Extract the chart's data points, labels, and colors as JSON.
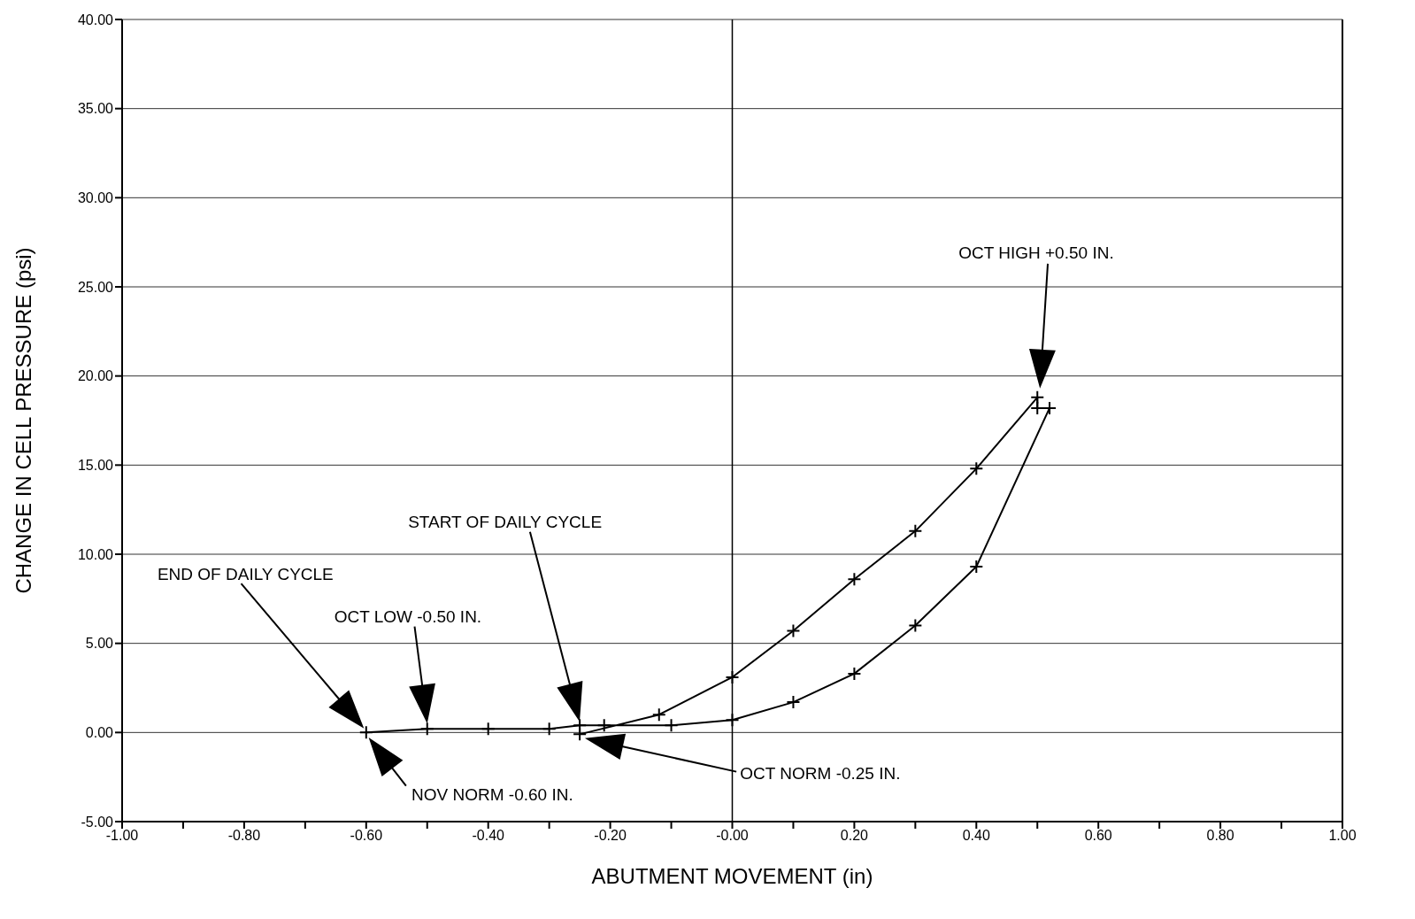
{
  "chart_data": {
    "type": "line",
    "xlabel": "ABUTMENT MOVEMENT (in)",
    "ylabel": "CHANGE IN CELL PRESSURE (psi)",
    "x": [
      -0.25,
      -0.12,
      0.0,
      0.1,
      0.2,
      0.3,
      0.4,
      0.5,
      0.5,
      0.52,
      0.4,
      0.3,
      0.2,
      0.1,
      0.0,
      -0.1,
      -0.21,
      -0.25,
      -0.3,
      -0.4,
      -0.5,
      -0.6
    ],
    "values": [
      -0.1,
      1.0,
      3.1,
      5.7,
      8.6,
      11.3,
      14.8,
      18.8,
      18.2,
      18.2,
      9.3,
      6.0,
      3.3,
      1.7,
      0.7,
      0.4,
      0.4,
      0.4,
      0.2,
      0.2,
      0.2,
      0.0
    ],
    "color": "#000000",
    "marker": "cross",
    "line_style": "solid",
    "grid": "y",
    "xlim": [
      -1,
      1
    ],
    "xticks": [
      {
        "value": -1,
        "label": "-1.00"
      },
      {
        "value": -0.9,
        "label": null
      },
      {
        "value": -0.8,
        "label": "-0.80"
      },
      {
        "value": -0.7,
        "label": null
      },
      {
        "value": -0.6,
        "label": "-0.60"
      },
      {
        "value": -0.5,
        "label": null
      },
      {
        "value": -0.4,
        "label": "-0.40"
      },
      {
        "value": -0.3,
        "label": null
      },
      {
        "value": -0.2,
        "label": "-0.20"
      },
      {
        "value": -0.1,
        "label": null
      },
      {
        "value": 0,
        "label": "-0.00"
      },
      {
        "value": 0.1,
        "label": null
      },
      {
        "value": 0.2,
        "label": "0.20"
      },
      {
        "value": 0.3,
        "label": null
      },
      {
        "value": 0.4,
        "label": "0.40"
      },
      {
        "value": 0.5,
        "label": null
      },
      {
        "value": 0.6,
        "label": "0.60"
      },
      {
        "value": 0.7,
        "label": null
      },
      {
        "value": 0.8,
        "label": "0.80"
      },
      {
        "value": 0.9,
        "label": null
      },
      {
        "value": 1,
        "label": "1.00"
      }
    ],
    "ylim": [
      -5,
      40
    ],
    "yticks": [
      {
        "value": -5,
        "label": "-5.00"
      },
      {
        "value": 0,
        "label": "0.00"
      },
      {
        "value": 5,
        "label": "5.00"
      },
      {
        "value": 10,
        "label": "10.00"
      },
      {
        "value": 15,
        "label": "15.00"
      },
      {
        "value": 20,
        "label": "20.00"
      },
      {
        "value": 25,
        "label": "25.00"
      },
      {
        "value": 30,
        "label": "30.00"
      },
      {
        "value": 35,
        "label": "35.00"
      },
      {
        "value": 40,
        "label": "40.00"
      }
    ],
    "ref_lines": [
      {
        "axis": "x",
        "value": 0,
        "color": "#000000"
      }
    ],
    "annotations": [
      "OCT HIGH +0.50 IN.",
      "START OF DAILY CYCLE",
      "END OF DAILY CYCLE",
      "OCT LOW -0.50 IN.",
      "NOV NORM -0.60 IN.",
      "OCT NORM -0.25 IN."
    ]
  }
}
